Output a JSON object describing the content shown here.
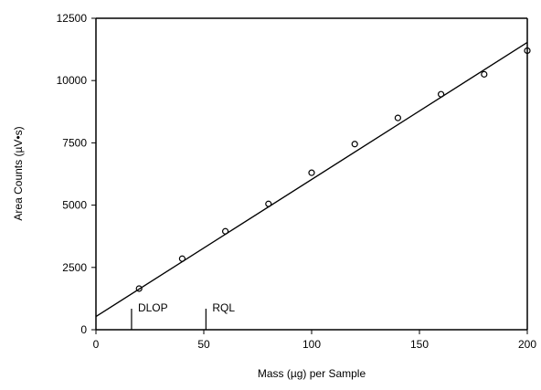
{
  "chart_data": {
    "type": "scatter",
    "title": "",
    "xlabel": "Mass (µg) per Sample",
    "ylabel": "Area Counts (µV•s)",
    "xlim": [
      0,
      200
    ],
    "ylim": [
      0,
      12500
    ],
    "xticks": [
      0,
      50,
      100,
      150,
      200
    ],
    "yticks": [
      0,
      2500,
      5000,
      7500,
      10000,
      12500
    ],
    "grid": false,
    "legend": "none",
    "colors": {
      "axis": "#000000",
      "marker": "#000000",
      "fit_line": "#000000"
    },
    "series": [
      {
        "points": [
          {
            "x": 20,
            "y": 1650
          },
          {
            "x": 40,
            "y": 2850
          },
          {
            "x": 60,
            "y": 3950
          },
          {
            "x": 80,
            "y": 5050
          },
          {
            "x": 100,
            "y": 6300
          },
          {
            "x": 120,
            "y": 7450
          },
          {
            "x": 140,
            "y": 8500
          },
          {
            "x": 160,
            "y": 9450
          },
          {
            "x": 180,
            "y": 10250
          },
          {
            "x": 200,
            "y": 11200
          }
        ]
      }
    ],
    "fit_line": {
      "x": [
        0,
        200
      ],
      "y": [
        530,
        11530
      ]
    },
    "annotations": [
      {
        "label": "DLOP",
        "x": 16.5
      },
      {
        "label": "RQL",
        "x": 51
      }
    ]
  }
}
